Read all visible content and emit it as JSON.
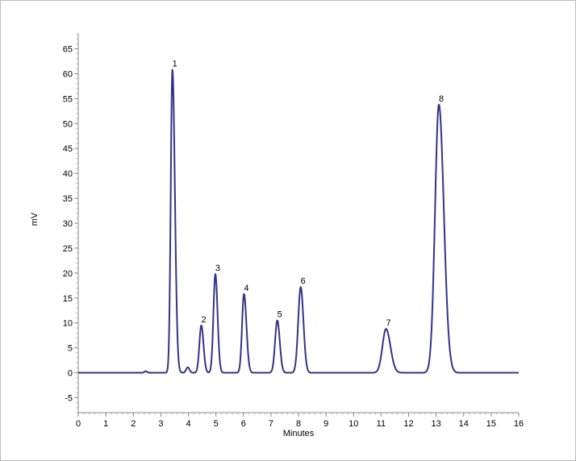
{
  "chart_data": {
    "type": "line",
    "title": "",
    "xlabel": "Minutes",
    "ylabel": "mV",
    "xlim": [
      0,
      16
    ],
    "ylim": [
      -8,
      68
    ],
    "x_ticks": [
      0,
      1,
      2,
      3,
      4,
      5,
      6,
      7,
      8,
      9,
      10,
      11,
      12,
      13,
      14,
      15,
      16
    ],
    "y_ticks": [
      -5,
      0,
      5,
      10,
      15,
      20,
      25,
      30,
      35,
      40,
      45,
      50,
      55,
      60,
      65
    ],
    "grid": false,
    "line_color": "#33338a",
    "baseline": 0,
    "peaks": [
      {
        "label": "1",
        "time": 3.42,
        "height": 60.8,
        "width_left": 0.06,
        "width_right": 0.09
      },
      {
        "label": "2",
        "time": 4.47,
        "height": 9.5,
        "width_left": 0.07,
        "width_right": 0.08
      },
      {
        "label": "3",
        "time": 4.98,
        "height": 19.8,
        "width_left": 0.07,
        "width_right": 0.08
      },
      {
        "label": "4",
        "time": 6.02,
        "height": 15.8,
        "width_left": 0.07,
        "width_right": 0.09
      },
      {
        "label": "5",
        "time": 7.23,
        "height": 10.5,
        "width_left": 0.08,
        "width_right": 0.09
      },
      {
        "label": "6",
        "time": 8.08,
        "height": 17.2,
        "width_left": 0.09,
        "width_right": 0.1
      },
      {
        "label": "7",
        "time": 11.18,
        "height": 8.8,
        "width_left": 0.13,
        "width_right": 0.16
      },
      {
        "label": "8",
        "time": 13.1,
        "height": 53.8,
        "width_left": 0.14,
        "width_right": 0.18
      }
    ],
    "minor_features": [
      {
        "time": 2.45,
        "height": 0.3,
        "width_left": 0.05,
        "width_right": 0.05
      },
      {
        "time": 3.98,
        "height": 1.1,
        "width_left": 0.06,
        "width_right": 0.06
      }
    ]
  }
}
